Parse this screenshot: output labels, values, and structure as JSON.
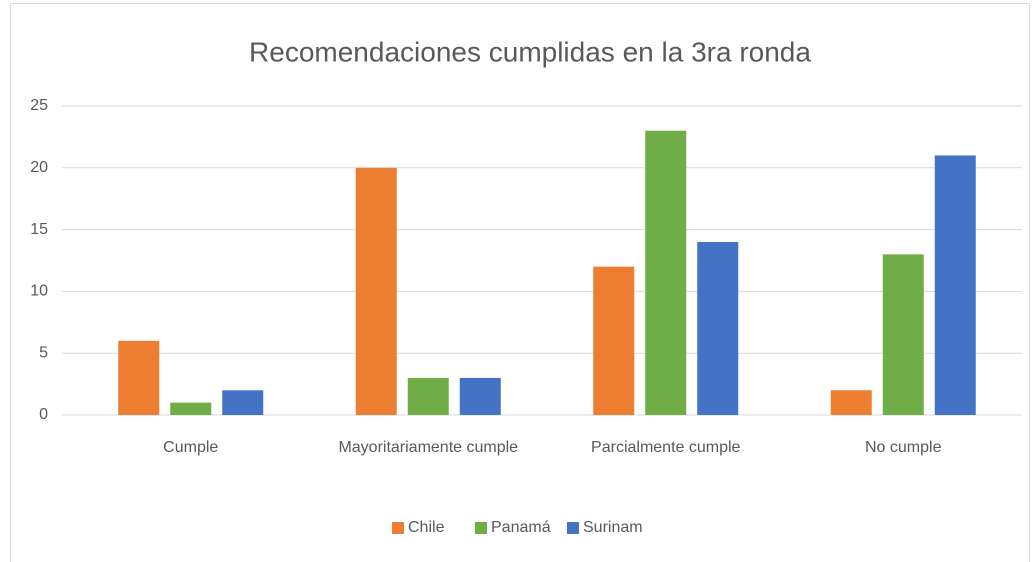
{
  "chart_data": {
    "type": "bar",
    "title": "Recomendaciones cumplidas en la 3ra ronda",
    "categories": [
      "Cumple",
      "Mayoritariamente cumple",
      "Parcialmente cumple",
      "No cumple"
    ],
    "series": [
      {
        "name": "Chile",
        "color": "#ed7d31",
        "values": [
          6,
          20,
          12,
          2
        ]
      },
      {
        "name": "Panamá",
        "color": "#70ad47",
        "values": [
          1,
          3,
          23,
          13
        ]
      },
      {
        "name": "Surinam",
        "color": "#4472c4",
        "values": [
          2,
          3,
          14,
          21
        ]
      }
    ],
    "ylim": [
      0,
      25
    ],
    "yticks": [
      0,
      5,
      10,
      15,
      20,
      25
    ],
    "grid": true,
    "legend": "bottom"
  }
}
